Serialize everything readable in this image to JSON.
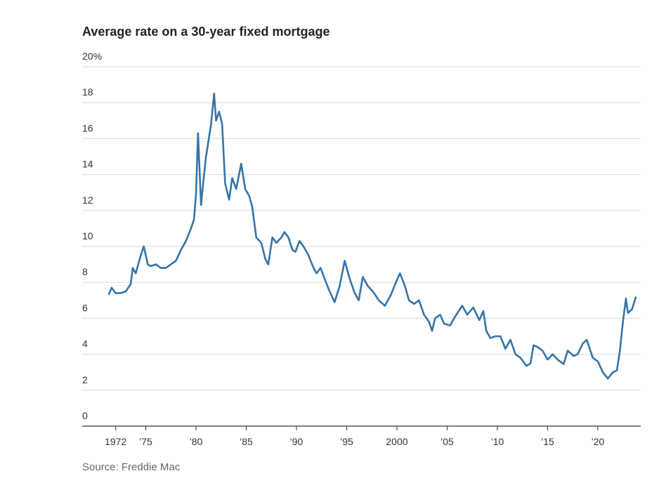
{
  "chart_data": {
    "type": "line",
    "title": "Average rate on a 30-year fixed mortgage",
    "source": "Source: Freddie Mac",
    "color": "#3474a8",
    "grid": true,
    "x": [
      1971.3,
      1971.6,
      1972.0,
      1972.5,
      1973.0,
      1973.5,
      1973.7,
      1974.0,
      1974.5,
      1974.8,
      1975.2,
      1975.5,
      1976.0,
      1976.5,
      1977.0,
      1977.5,
      1978.0,
      1978.5,
      1979.0,
      1979.5,
      1979.8,
      1980.0,
      1980.2,
      1980.5,
      1980.8,
      1981.0,
      1981.5,
      1981.8,
      1982.0,
      1982.3,
      1982.6,
      1982.9,
      1983.3,
      1983.6,
      1984.0,
      1984.5,
      1984.9,
      1985.3,
      1985.6,
      1986.0,
      1986.5,
      1986.9,
      1987.2,
      1987.6,
      1988.0,
      1988.5,
      1988.8,
      1989.2,
      1989.6,
      1989.9,
      1990.3,
      1990.7,
      1991.2,
      1991.7,
      1992.0,
      1992.4,
      1992.8,
      1993.3,
      1993.8,
      1994.3,
      1994.8,
      1995.3,
      1995.8,
      1996.2,
      1996.6,
      1997.1,
      1997.6,
      1998.2,
      1998.8,
      1999.4,
      1999.9,
      2000.3,
      2000.8,
      2001.2,
      2001.7,
      2002.2,
      2002.7,
      2003.2,
      2003.5,
      2003.8,
      2004.3,
      2004.7,
      2005.3,
      2005.8,
      2006.5,
      2007.0,
      2007.6,
      2008.2,
      2008.6,
      2008.9,
      2009.3,
      2009.8,
      2010.3,
      2010.8,
      2011.3,
      2011.8,
      2012.3,
      2012.9,
      2013.3,
      2013.6,
      2014.0,
      2014.5,
      2015.0,
      2015.5,
      2016.0,
      2016.6,
      2017.0,
      2017.6,
      2018.0,
      2018.5,
      2018.9,
      2019.5,
      2020.0,
      2020.5,
      2021.0,
      2021.5,
      2021.9,
      2022.2,
      2022.5,
      2022.8,
      2023.0,
      2023.4,
      2023.8
    ],
    "values": [
      7.3,
      7.7,
      7.4,
      7.4,
      7.5,
      7.9,
      8.8,
      8.5,
      9.5,
      10.0,
      9.0,
      8.9,
      9.0,
      8.8,
      8.8,
      9.0,
      9.2,
      9.8,
      10.3,
      11.0,
      11.5,
      12.9,
      16.3,
      12.3,
      14.0,
      15.0,
      16.8,
      18.5,
      17.0,
      17.5,
      16.8,
      13.5,
      12.6,
      13.8,
      13.2,
      14.6,
      13.2,
      12.8,
      12.2,
      10.5,
      10.2,
      9.3,
      9.0,
      10.5,
      10.2,
      10.5,
      10.8,
      10.5,
      9.8,
      9.7,
      10.3,
      10.0,
      9.5,
      8.8,
      8.5,
      8.8,
      8.2,
      7.5,
      6.9,
      7.8,
      9.2,
      8.2,
      7.4,
      7.0,
      8.3,
      7.8,
      7.5,
      7.0,
      6.7,
      7.3,
      8.0,
      8.5,
      7.8,
      7.0,
      6.8,
      7.0,
      6.2,
      5.8,
      5.3,
      6.0,
      6.2,
      5.7,
      5.6,
      6.1,
      6.7,
      6.2,
      6.6,
      5.9,
      6.4,
      5.3,
      4.9,
      5.0,
      5.0,
      4.3,
      4.8,
      4.0,
      3.8,
      3.35,
      3.5,
      4.5,
      4.4,
      4.2,
      3.7,
      4.0,
      3.7,
      3.45,
      4.2,
      3.9,
      4.0,
      4.6,
      4.8,
      3.8,
      3.6,
      3.0,
      2.65,
      3.0,
      3.1,
      4.2,
      5.8,
      7.1,
      6.3,
      6.5,
      7.2
    ],
    "xlim": [
      1968.67,
      2024.27
    ],
    "ylim": [
      0,
      20
    ],
    "xticks": [
      1972,
      {
        "value": 1975,
        "label": "’75"
      },
      {
        "value": 1980,
        "label": "’80"
      },
      {
        "value": 1985,
        "label": "’85"
      },
      {
        "value": 1990,
        "label": "’90"
      },
      {
        "value": 1995,
        "label": "’95"
      },
      2000,
      {
        "value": 2005,
        "label": "’05"
      },
      {
        "value": 2010,
        "label": "’10"
      },
      {
        "value": 2015,
        "label": "’15"
      },
      {
        "value": 2020,
        "label": "’20"
      }
    ],
    "yticks": [
      0,
      2,
      4,
      6,
      8,
      10,
      12,
      14,
      16,
      18,
      {
        "value": 20,
        "label": "20%"
      }
    ]
  }
}
